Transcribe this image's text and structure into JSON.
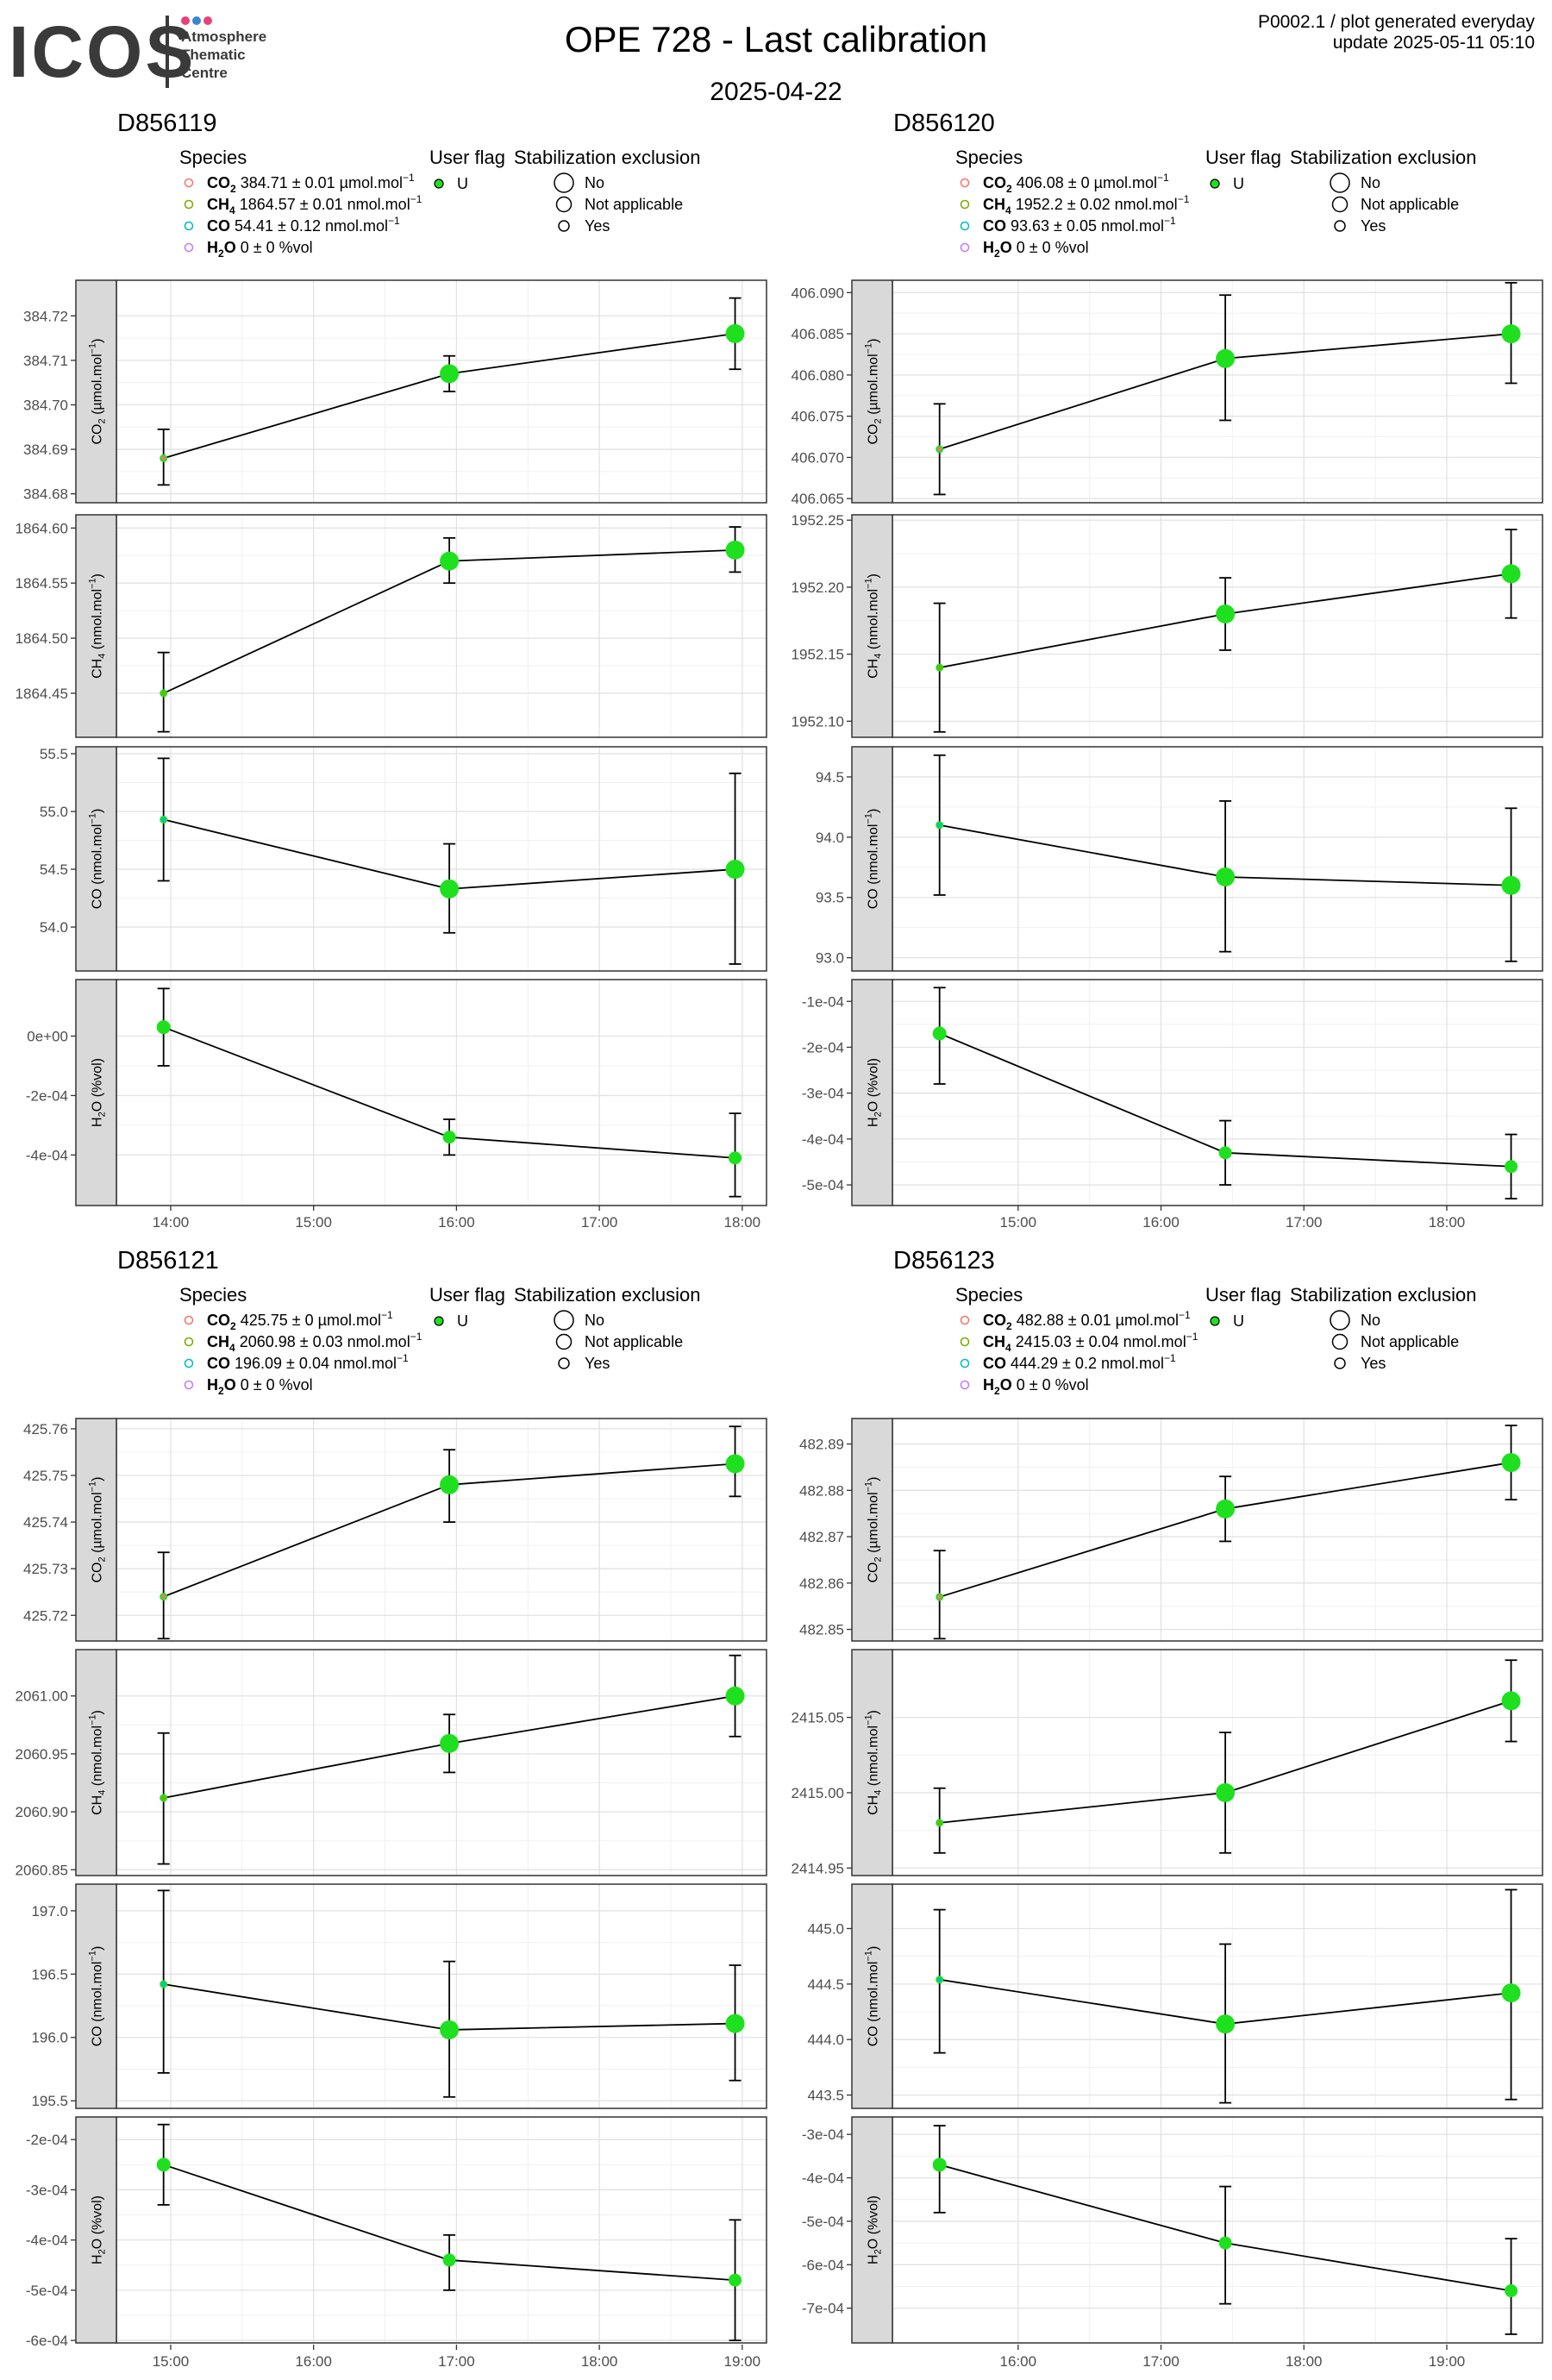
{
  "header": {
    "logo_text": "ICOS",
    "logo_sub": [
      "Atmosphere",
      "Thematic",
      "Centre"
    ],
    "logo_dot_colors": [
      "#e8407a",
      "#3a84d8",
      "#e8407a"
    ],
    "title": "OPE 728 - Last calibration",
    "date": "2025-04-22",
    "note_line1": "P0002.1 / plot generated everyday",
    "note_line2": "update  2025-05-11 05:10"
  },
  "legend_labels": {
    "species_title": "Species",
    "user_flag_title": "User flag",
    "stab_title": "Stabilization exclusion",
    "user_flag_value": "U",
    "stab_items": [
      "No",
      "Not applicable",
      "Yes"
    ]
  },
  "colors": {
    "point": "#1fe01f",
    "co2": "#f8766d",
    "ch4": "#7cae00",
    "co": "#00bfc4",
    "h2o": "#c77cff",
    "strip": "#d9d9d9"
  },
  "chart_data": [
    {
      "type": "scatter",
      "title": "D856119",
      "legend": [
        {
          "species": "CO2",
          "text": " 384.71 ± 0.01 µmol.mol",
          "unit_sup": "−1"
        },
        {
          "species": "CH4",
          "text": " 1864.57 ± 0.01 nmol.mol",
          "unit_sup": "−1"
        },
        {
          "species": "CO",
          "text": " 54.41 ± 0.12 nmol.mol",
          "unit_sup": "−1"
        },
        {
          "species": "H2O",
          "text": " 0 ± 0 %vol",
          "unit_sup": ""
        }
      ],
      "x_ticks": [
        "14:00",
        "15:00",
        "16:00",
        "17:00",
        "18:00"
      ],
      "xlim": [
        13.62,
        18.17
      ],
      "x": [
        13.95,
        15.95,
        17.95
      ],
      "panels": [
        {
          "species": "CO2",
          "ylabel": "CO2 (µmol.mol-1)",
          "ylim": [
            384.678,
            384.728
          ],
          "y_ticks": [
            384.68,
            384.69,
            384.7,
            384.71,
            384.72
          ],
          "y_tick_labels": [
            "384.68",
            "384.69",
            "384.70",
            "384.71",
            "384.72"
          ],
          "values": [
            384.688,
            384.707,
            384.716
          ],
          "err_low": [
            384.682,
            384.703,
            384.708
          ],
          "err_high": [
            384.6945,
            384.711,
            384.724
          ]
        },
        {
          "species": "CH4",
          "ylabel": "CH4 (nmol.mol-1)",
          "ylim": [
            1864.41,
            1864.612
          ],
          "y_ticks": [
            1864.45,
            1864.5,
            1864.55,
            1864.6
          ],
          "y_tick_labels": [
            "1864.45",
            "1864.50",
            "1864.55",
            "1864.60"
          ],
          "values": [
            1864.45,
            1864.57,
            1864.58
          ],
          "err_low": [
            1864.415,
            1864.55,
            1864.56
          ],
          "err_high": [
            1864.487,
            1864.591,
            1864.601
          ]
        },
        {
          "species": "CO",
          "ylabel": "CO (nmol.mol-1)",
          "ylim": [
            53.62,
            55.56
          ],
          "y_ticks": [
            54.0,
            54.5,
            55.0,
            55.5
          ],
          "y_tick_labels": [
            "54.0",
            "54.5",
            "55.0",
            "55.5"
          ],
          "values": [
            54.93,
            54.33,
            54.5
          ],
          "err_low": [
            54.4,
            53.95,
            53.68
          ],
          "err_high": [
            55.46,
            54.72,
            55.33
          ]
        },
        {
          "species": "H2O",
          "ylabel": "H2O (%vol)",
          "ylim": [
            -0.00057,
            0.00019
          ],
          "y_ticks": [
            0,
            -0.0002,
            -0.0004
          ],
          "y_tick_labels": [
            "0e+00",
            "-2e-04",
            "-4e-04"
          ],
          "values": [
            3e-05,
            -0.00034,
            -0.00041
          ],
          "err_low": [
            -0.0001,
            -0.0004,
            -0.00054
          ],
          "err_high": [
            0.00016,
            -0.00028,
            -0.00026
          ]
        }
      ]
    },
    {
      "type": "scatter",
      "title": "D856120",
      "legend": [
        {
          "species": "CO2",
          "text": " 406.08 ± 0 µmol.mol",
          "unit_sup": "−1"
        },
        {
          "species": "CH4",
          "text": " 1952.2 ± 0.02 nmol.mol",
          "unit_sup": "−1"
        },
        {
          "species": "CO",
          "text": " 93.63 ± 0.05 nmol.mol",
          "unit_sup": "−1"
        },
        {
          "species": "H2O",
          "text": " 0 ± 0 %vol",
          "unit_sup": ""
        }
      ],
      "x_ticks": [
        "15:00",
        "16:00",
        "17:00",
        "18:00"
      ],
      "xlim": [
        14.12,
        18.67
      ],
      "x": [
        14.45,
        16.45,
        18.45
      ],
      "panels": [
        {
          "species": "CO2",
          "ylabel": "CO2 (µmol.mol-1)",
          "ylim": [
            406.0645,
            406.0915
          ],
          "y_ticks": [
            406.065,
            406.07,
            406.075,
            406.08,
            406.085,
            406.09
          ],
          "y_tick_labels": [
            "406.065",
            "406.070",
            "406.075",
            "406.080",
            "406.085",
            "406.090"
          ],
          "values": [
            406.071,
            406.082,
            406.085
          ],
          "err_low": [
            406.0655,
            406.0745,
            406.079
          ],
          "err_high": [
            406.0765,
            406.0897,
            406.0912
          ]
        },
        {
          "species": "CH4",
          "ylabel": "CH4 (nmol.mol-1)",
          "ylim": [
            1952.088,
            1952.254
          ],
          "y_ticks": [
            1952.1,
            1952.15,
            1952.2,
            1952.25
          ],
          "y_tick_labels": [
            "1952.10",
            "1952.15",
            "1952.20",
            "1952.25"
          ],
          "values": [
            1952.14,
            1952.18,
            1952.21
          ],
          "err_low": [
            1952.092,
            1952.153,
            1952.177
          ],
          "err_high": [
            1952.188,
            1952.207,
            1952.243
          ]
        },
        {
          "species": "CO",
          "ylabel": "CO (nmol.mol-1)",
          "ylim": [
            92.89,
            94.75
          ],
          "y_ticks": [
            93.0,
            93.5,
            94.0,
            94.5
          ],
          "y_tick_labels": [
            "93.0",
            "93.5",
            "94.0",
            "94.5"
          ],
          "values": [
            94.1,
            93.67,
            93.6
          ],
          "err_low": [
            93.52,
            93.05,
            92.97
          ],
          "err_high": [
            94.68,
            94.3,
            94.24
          ]
        },
        {
          "species": "H2O",
          "ylabel": "H2O (%vol)",
          "ylim": [
            -0.000545,
            -5.25e-05
          ],
          "y_ticks": [
            -0.0001,
            -0.0002,
            -0.0003,
            -0.0004,
            -0.0005
          ],
          "y_tick_labels": [
            "-1e-04",
            "-2e-04",
            "-3e-04",
            "-4e-04",
            "-5e-04"
          ],
          "values": [
            -0.00017,
            -0.00043,
            -0.00046
          ],
          "err_low": [
            -0.00028,
            -0.0005,
            -0.00053
          ],
          "err_high": [
            -7e-05,
            -0.00036,
            -0.00039
          ]
        }
      ]
    },
    {
      "type": "scatter",
      "title": "D856121",
      "legend": [
        {
          "species": "CO2",
          "text": " 425.75 ± 0 µmol.mol",
          "unit_sup": "−1"
        },
        {
          "species": "CH4",
          "text": " 2060.98 ± 0.03 nmol.mol",
          "unit_sup": "−1"
        },
        {
          "species": "CO",
          "text": " 196.09 ± 0.04 nmol.mol",
          "unit_sup": "−1"
        },
        {
          "species": "H2O",
          "text": " 0 ± 0 %vol",
          "unit_sup": ""
        }
      ],
      "x_ticks": [
        "15:00",
        "16:00",
        "17:00",
        "18:00",
        "19:00"
      ],
      "xlim": [
        14.62,
        19.17
      ],
      "x": [
        14.95,
        16.95,
        18.95
      ],
      "panels": [
        {
          "species": "CO2",
          "ylabel": "CO2 (µmol.mol-1)",
          "ylim": [
            425.7145,
            425.7622
          ],
          "y_ticks": [
            425.72,
            425.73,
            425.74,
            425.75,
            425.76
          ],
          "y_tick_labels": [
            "425.72",
            "425.73",
            "425.74",
            "425.75",
            "425.76"
          ],
          "values": [
            425.724,
            425.748,
            425.7525
          ],
          "err_low": [
            425.715,
            425.74,
            425.7455
          ],
          "err_high": [
            425.7335,
            425.7555,
            425.7605
          ]
        },
        {
          "species": "CH4",
          "ylabel": "CH4 (nmol.mol-1)",
          "ylim": [
            2060.845,
            2061.04
          ],
          "y_ticks": [
            2060.85,
            2060.9,
            2060.95,
            2061.0
          ],
          "y_tick_labels": [
            "2060.85",
            "2060.90",
            "2060.95",
            "2061.00"
          ],
          "values": [
            2060.912,
            2060.959,
            2061.0
          ],
          "err_low": [
            2060.855,
            2060.934,
            2060.965
          ],
          "err_high": [
            2060.968,
            2060.984,
            2061.035
          ]
        },
        {
          "species": "CO",
          "ylabel": "CO (nmol.mol-1)",
          "ylim": [
            195.44,
            197.21
          ],
          "y_ticks": [
            195.5,
            196.0,
            196.5,
            197.0
          ],
          "y_tick_labels": [
            "195.5",
            "196.0",
            "196.5",
            "197.0"
          ],
          "values": [
            196.42,
            196.06,
            196.11
          ],
          "err_low": [
            195.72,
            195.53,
            195.66
          ],
          "err_high": [
            197.16,
            196.6,
            196.57
          ]
        },
        {
          "species": "H2O",
          "ylabel": "H2O (%vol)",
          "ylim": [
            -0.000605,
            -0.000155
          ],
          "y_ticks": [
            -0.0002,
            -0.0003,
            -0.0004,
            -0.0005,
            -0.0006
          ],
          "y_tick_labels": [
            "-2e-04",
            "-3e-04",
            "-4e-04",
            "-5e-04",
            "-6e-04"
          ],
          "values": [
            -0.00025,
            -0.00044,
            -0.00048
          ],
          "err_low": [
            -0.00033,
            -0.0005,
            -0.0006
          ],
          "err_high": [
            -0.00017,
            -0.00039,
            -0.00036
          ]
        }
      ]
    },
    {
      "type": "scatter",
      "title": "D856123",
      "legend": [
        {
          "species": "CO2",
          "text": " 482.88 ± 0.01 µmol.mol",
          "unit_sup": "−1"
        },
        {
          "species": "CH4",
          "text": " 2415.03 ± 0.04 nmol.mol",
          "unit_sup": "−1"
        },
        {
          "species": "CO",
          "text": " 444.29 ± 0.2 nmol.mol",
          "unit_sup": "−1"
        },
        {
          "species": "H2O",
          "text": " 0 ± 0 %vol",
          "unit_sup": ""
        }
      ],
      "x_ticks": [
        "16:00",
        "17:00",
        "18:00",
        "19:00"
      ],
      "xlim": [
        15.12,
        19.67
      ],
      "x": [
        15.45,
        17.45,
        19.45
      ],
      "panels": [
        {
          "species": "CO2",
          "ylabel": "CO2 (µmol.mol-1)",
          "ylim": [
            482.8475,
            482.8955
          ],
          "y_ticks": [
            482.85,
            482.86,
            482.87,
            482.88,
            482.89
          ],
          "y_tick_labels": [
            "482.85",
            "482.86",
            "482.87",
            "482.88",
            "482.89"
          ],
          "values": [
            482.857,
            482.876,
            482.886
          ],
          "err_low": [
            482.848,
            482.869,
            482.878
          ],
          "err_high": [
            482.867,
            482.883,
            482.894
          ]
        },
        {
          "species": "CH4",
          "ylabel": "CH4 (nmol.mol-1)",
          "ylim": [
            2414.945,
            2415.095
          ],
          "y_ticks": [
            2414.95,
            2415.0,
            2415.05
          ],
          "y_tick_labels": [
            "2414.95",
            "2415.00",
            "2415.05"
          ],
          "values": [
            2414.98,
            2415.0,
            2415.061
          ],
          "err_low": [
            2414.96,
            2414.96,
            2415.034
          ],
          "err_high": [
            2415.003,
            2415.04,
            2415.088
          ]
        },
        {
          "species": "CO",
          "ylabel": "CO (nmol.mol-1)",
          "ylim": [
            443.38,
            445.4
          ],
          "y_ticks": [
            443.5,
            444.0,
            444.5,
            445.0
          ],
          "y_tick_labels": [
            "443.5",
            "444.0",
            "444.5",
            "445.0"
          ],
          "values": [
            444.54,
            444.14,
            444.42
          ],
          "err_low": [
            443.88,
            443.43,
            443.46
          ],
          "err_high": [
            445.17,
            444.86,
            445.35
          ]
        },
        {
          "species": "H2O",
          "ylabel": "H2O (%vol)",
          "ylim": [
            -0.00078,
            -0.00026
          ],
          "y_ticks": [
            -0.0003,
            -0.0004,
            -0.0005,
            -0.0006,
            -0.0007
          ],
          "y_tick_labels": [
            "-3e-04",
            "-4e-04",
            "-5e-04",
            "-6e-04",
            "-7e-04"
          ],
          "values": [
            -0.00037,
            -0.00055,
            -0.00066
          ],
          "err_low": [
            -0.00048,
            -0.00069,
            -0.00076
          ],
          "err_high": [
            -0.00028,
            -0.00042,
            -0.00054
          ]
        }
      ]
    }
  ]
}
